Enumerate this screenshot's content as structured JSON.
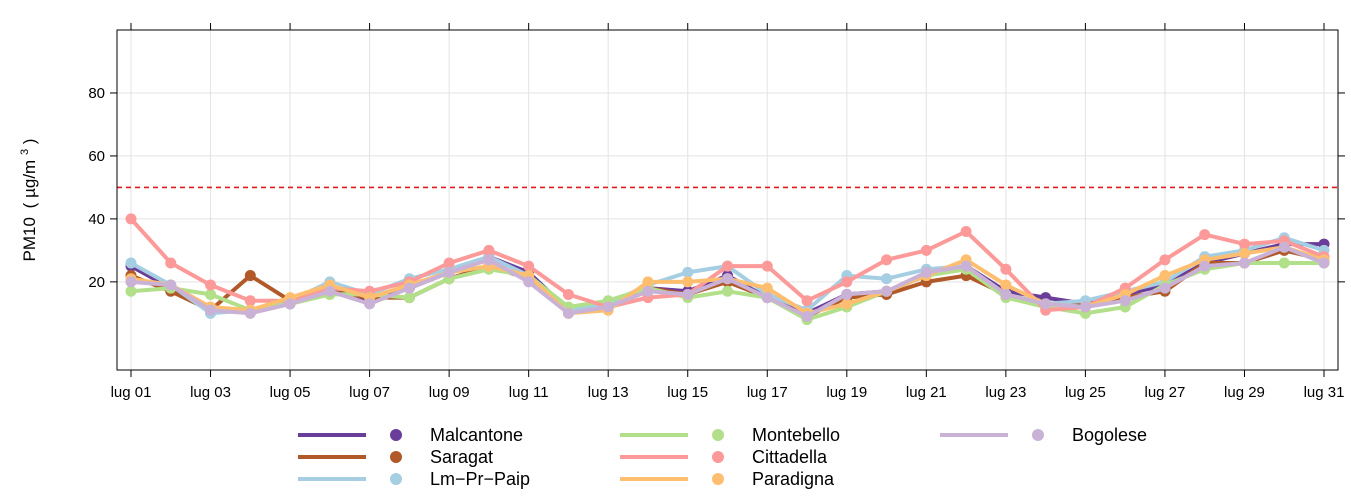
{
  "chart_data": {
    "type": "line",
    "title": "",
    "xlabel": "",
    "ylabel": {
      "main": "PM10",
      "open": "(",
      "unit": "µg/m",
      "sup": "3",
      "close": ")"
    },
    "ylim": [
      -8,
      100
    ],
    "yticks": [
      20,
      40,
      60,
      80
    ],
    "x": [
      "lug 01",
      "lug 02",
      "lug 03",
      "lug 04",
      "lug 05",
      "lug 06",
      "lug 07",
      "lug 08",
      "lug 09",
      "lug 10",
      "lug 11",
      "lug 12",
      "lug 13",
      "lug 14",
      "lug 15",
      "lug 16",
      "lug 17",
      "lug 18",
      "lug 19",
      "lug 20",
      "lug 21",
      "lug 22",
      "lug 23",
      "lug 24",
      "lug 25",
      "lug 26",
      "lug 27",
      "lug 28",
      "lug 29",
      "lug 30",
      "lug 31"
    ],
    "xtick_labels": [
      "lug 01",
      "lug 03",
      "lug 05",
      "lug 07",
      "lug 09",
      "lug 11",
      "lug 13",
      "lug 15",
      "lug 17",
      "lug 19",
      "lug 21",
      "lug 23",
      "lug 25",
      "lug 27",
      "lug 29",
      "lug 31"
    ],
    "threshold": {
      "value": 50,
      "color": "#e31a1c",
      "style": "dashed"
    },
    "grid": true,
    "legend_position": "bottom",
    "series": [
      {
        "name": "Malcantone",
        "color": "#6a3d9a",
        "values": [
          25,
          18,
          11,
          11,
          13,
          19,
          14,
          18,
          23,
          28,
          23,
          11,
          13,
          18,
          17,
          22,
          15,
          10,
          16,
          17,
          22,
          25,
          17,
          15,
          13,
          16,
          19,
          26,
          29,
          32,
          32
        ]
      },
      {
        "name": "Saragat",
        "color": "#b15928",
        "values": [
          22,
          17,
          11,
          22,
          14,
          17,
          15,
          15,
          21,
          25,
          21,
          11,
          13,
          18,
          16,
          20,
          15,
          9,
          15,
          16,
          20,
          22,
          16,
          13,
          13,
          15,
          17,
          26,
          26,
          30,
          27
        ]
      },
      {
        "name": "Lm-Pr-Paip",
        "color": "#a6cee3",
        "values": [
          26,
          19,
          10,
          11,
          14,
          20,
          16,
          21,
          24,
          28,
          22,
          11,
          13,
          19,
          23,
          25,
          16,
          11,
          22,
          21,
          24,
          25,
          16,
          13,
          14,
          17,
          20,
          28,
          30,
          34,
          30
        ]
      },
      {
        "name": "Montebello",
        "color": "#b2df8a",
        "values": [
          17,
          18,
          16,
          11,
          13,
          16,
          16,
          15,
          21,
          24,
          22,
          12,
          14,
          18,
          15,
          17,
          15,
          8,
          12,
          17,
          22,
          24,
          15,
          12,
          10,
          12,
          19,
          24,
          26,
          26,
          26
        ]
      },
      {
        "name": "Cittadella",
        "color": "#fb9a99",
        "values": [
          40,
          26,
          19,
          14,
          14,
          18,
          17,
          20,
          26,
          30,
          25,
          16,
          12,
          15,
          16,
          25,
          25,
          14,
          20,
          27,
          30,
          36,
          24,
          11,
          12,
          18,
          27,
          35,
          32,
          33,
          28
        ]
      },
      {
        "name": "Paradigna",
        "color": "#fdbf6f",
        "values": [
          21,
          19,
          12,
          11,
          15,
          19,
          15,
          19,
          23,
          25,
          22,
          10,
          11,
          20,
          20,
          21,
          18,
          10,
          13,
          17,
          22,
          27,
          19,
          13,
          12,
          16,
          22,
          27,
          29,
          31,
          27
        ]
      },
      {
        "name": "Bogolese",
        "color": "#cab2d6",
        "values": [
          20,
          19,
          11,
          10,
          13,
          17,
          13,
          18,
          23,
          27,
          20,
          10,
          12,
          17,
          16,
          21,
          15,
          9,
          16,
          17,
          23,
          25,
          16,
          13,
          12,
          14,
          18,
          25,
          26,
          31,
          26
        ]
      }
    ]
  }
}
